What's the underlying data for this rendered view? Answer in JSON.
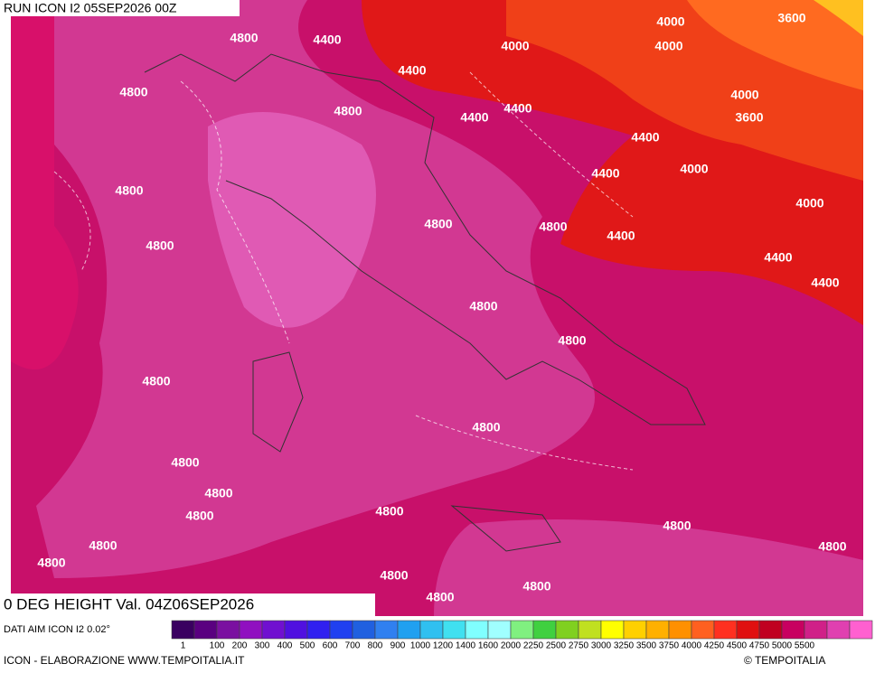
{
  "header": {
    "run": "RUN ICON I2 05SEP2026 00Z"
  },
  "contour_labels": [
    "4800",
    "4400",
    "4000",
    "3600",
    "4000",
    "4000",
    "4800",
    "4400",
    "4800",
    "4400",
    "4400",
    "4000",
    "3600",
    "4400",
    "4800",
    "4400",
    "4000",
    "4000",
    "4800",
    "4800",
    "4400",
    "4800",
    "4400",
    "4400",
    "4800",
    "4800",
    "4800",
    "4800",
    "4800",
    "4800",
    "4800",
    "4800",
    "4800",
    "4800",
    "4800",
    "4800",
    "4800",
    "4800",
    "4800"
  ],
  "footer": {
    "title": "0 DEG HEIGHT Val. 04Z06SEP2026",
    "source": "DATI AIM ICON I2 0.02°",
    "credit": "ICON - ELABORAZIONE WWW.TEMPOITALIA.IT",
    "copyright": "© TEMPOITALIA"
  },
  "legend": {
    "colors": [
      "#3a0060",
      "#5a0080",
      "#7a10a0",
      "#9010c0",
      "#7010d0",
      "#5010e0",
      "#3020f0",
      "#2040f0",
      "#2060e0",
      "#3080f0",
      "#20a0f0",
      "#30c0f0",
      "#40e0f0",
      "#80ffff",
      "#a0ffff",
      "#80f080",
      "#40d040",
      "#80d020",
      "#c0e020",
      "#ffff00",
      "#ffd000",
      "#ffb000",
      "#ff9000",
      "#ff6020",
      "#ff3020",
      "#e01010",
      "#c00020",
      "#c80060",
      "#d02088",
      "#e040b0",
      "#ff60d0"
    ],
    "labels": [
      "1",
      "100",
      "200",
      "300",
      "400",
      "500",
      "600",
      "700",
      "800",
      "900",
      "1000",
      "1200",
      "1400",
      "1600",
      "2000",
      "2250",
      "2500",
      "2750",
      "3000",
      "3250",
      "3500",
      "3750",
      "4000",
      "4250",
      "4500",
      "4750",
      "5000",
      "5500"
    ]
  }
}
